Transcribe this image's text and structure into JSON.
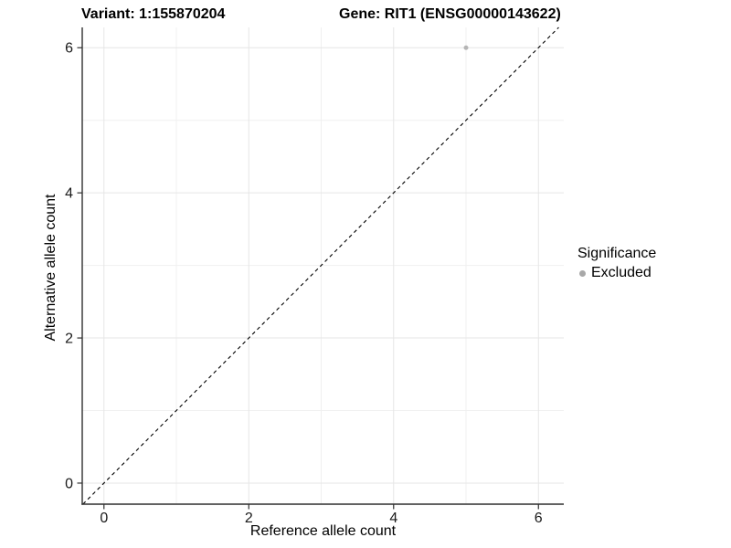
{
  "chart_data": {
    "type": "scatter",
    "titles": {
      "left": "Variant: 1:155870204",
      "right": "Gene: RIT1 (ENSG00000143622)"
    },
    "xlabel": "Reference allele count",
    "ylabel": "Alternative allele count",
    "xlim": [
      -0.3,
      6.35
    ],
    "ylim": [
      -0.29,
      6.28
    ],
    "x_ticks": [
      0,
      2,
      4,
      6
    ],
    "y_ticks": [
      0,
      2,
      4,
      6
    ],
    "x_minor_gridlines": [
      1,
      3,
      5
    ],
    "y_minor_gridlines": [
      1,
      3,
      5
    ],
    "grid": true,
    "identity_line": {
      "style": "dashed",
      "color": "#000000",
      "note": "y = x diagonal"
    },
    "series": [
      {
        "name": "Excluded",
        "color": "#b5b5b5",
        "points": [
          {
            "x": 5,
            "y": 6
          }
        ]
      }
    ],
    "legend": {
      "title": "Significance",
      "position": "right",
      "items": [
        {
          "label": "Excluded",
          "color": "#a8a8a8"
        }
      ]
    }
  },
  "colors": {
    "background": "#ffffff",
    "gridline_major": "#e6e6e6",
    "gridline_minor": "#f0f0f0",
    "axis_line": "#2f2f2f",
    "tick_text": "#1a1a1a",
    "title_text": "#000000"
  }
}
